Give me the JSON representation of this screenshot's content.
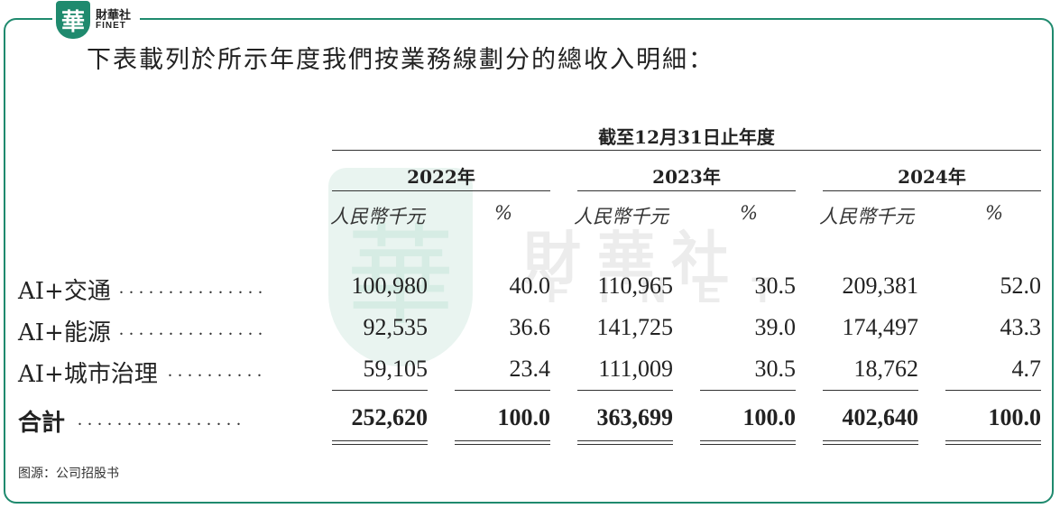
{
  "logo": {
    "badge": "華",
    "name_cn": "財華社",
    "name_en": "FINET"
  },
  "heading": "下表載列於所示年度我們按業務線劃分的總收入明細：",
  "watermark": {
    "seal": "華",
    "cn": "財華社",
    "en": "FINET"
  },
  "table": {
    "period": "截至12月31日止年度",
    "years": [
      "2022年",
      "2023年",
      "2024年"
    ],
    "unit_amount": "人民幣千元",
    "unit_pct": "%",
    "rows": [
      {
        "label": "AI+交通",
        "dots": "...............",
        "values": [
          "100,980",
          "40.0",
          "110,965",
          "30.5",
          "209,381",
          "52.0"
        ]
      },
      {
        "label": "AI+能源",
        "dots": "...............",
        "values": [
          "92,535",
          "36.6",
          "141,725",
          "39.0",
          "174,497",
          "43.3"
        ]
      },
      {
        "label": "AI+城市治理",
        "dots": "..........",
        "values": [
          "59,105",
          "23.4",
          "111,009",
          "30.5",
          "18,762",
          "4.7"
        ]
      }
    ],
    "total": {
      "label": "合計",
      "dots": ".................",
      "values": [
        "252,620",
        "100.0",
        "363,699",
        "100.0",
        "402,640",
        "100.0"
      ]
    }
  },
  "source": "图源：公司招股书",
  "colors": {
    "accent": "#1f8a6e"
  }
}
